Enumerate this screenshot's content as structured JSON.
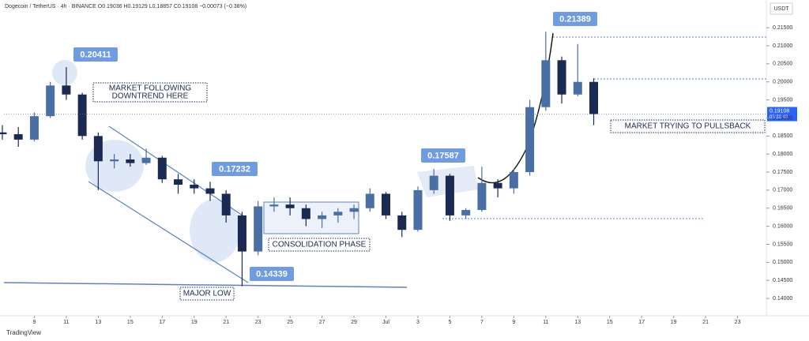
{
  "chart_data": {
    "type": "candlestick",
    "header": "Dogecoin / TetherUS · 4h · BINANCE   O0.19036  H0.19129  L0.18857  C0.19108  −0.00073 (−0.38%)",
    "currency": "USDT",
    "x": [
      7,
      8,
      9,
      10,
      11,
      12,
      13,
      14,
      15,
      16,
      17,
      18,
      19,
      20,
      21,
      22,
      23,
      24,
      25,
      26,
      27,
      28,
      29,
      30,
      31,
      32,
      33,
      34,
      35,
      36,
      37,
      38,
      39,
      40,
      41,
      42,
      43,
      44
    ],
    "open": [
      0.186,
      0.1855,
      0.184,
      0.1905,
      0.199,
      0.1965,
      0.185,
      0.178,
      0.1785,
      0.1775,
      0.179,
      0.173,
      0.1715,
      0.1705,
      0.169,
      0.163,
      0.153,
      0.1655,
      0.166,
      0.165,
      0.162,
      0.163,
      0.164,
      0.165,
      0.169,
      0.163,
      0.159,
      0.17,
      0.174,
      0.163,
      0.1645,
      0.172,
      0.1705,
      0.175,
      0.193,
      0.206,
      0.1965,
      0.2
    ],
    "high": [
      0.188,
      0.1875,
      0.1915,
      0.2,
      0.20411,
      0.197,
      0.186,
      0.18,
      0.18,
      0.1815,
      0.1795,
      0.1745,
      0.173,
      0.17232,
      0.17,
      0.164,
      0.167,
      0.168,
      0.168,
      0.166,
      0.164,
      0.165,
      0.166,
      0.1705,
      0.1695,
      0.164,
      0.171,
      0.17587,
      0.1745,
      0.165,
      0.1765,
      0.173,
      0.176,
      0.195,
      0.21389,
      0.207,
      0.2105,
      0.201
    ],
    "low": [
      0.184,
      0.182,
      0.1835,
      0.19,
      0.195,
      0.184,
      0.17,
      0.176,
      0.1765,
      0.177,
      0.172,
      0.169,
      0.169,
      0.167,
      0.161,
      0.14339,
      0.152,
      0.164,
      0.163,
      0.16,
      0.1595,
      0.161,
      0.162,
      0.164,
      0.162,
      0.157,
      0.1585,
      0.169,
      0.1615,
      0.162,
      0.164,
      0.168,
      0.169,
      0.174,
      0.192,
      0.194,
      0.196,
      0.188
    ],
    "close": [
      0.1855,
      0.184,
      0.1905,
      0.199,
      0.1965,
      0.185,
      0.178,
      0.1785,
      0.1775,
      0.179,
      0.173,
      0.1715,
      0.1705,
      0.169,
      0.163,
      0.153,
      0.1655,
      0.166,
      0.165,
      0.162,
      0.163,
      0.164,
      0.165,
      0.169,
      0.163,
      0.159,
      0.17,
      0.174,
      0.163,
      0.1645,
      0.172,
      0.1705,
      0.175,
      0.193,
      0.206,
      0.1965,
      0.2,
      0.19108
    ],
    "up_color": "#4a6fa5",
    "down_color": "#1b2a52",
    "xlim": [
      7.1,
      54.8
    ],
    "ylim": [
      0.1352,
      0.2205
    ],
    "xticks": [
      9,
      11,
      13,
      15,
      17,
      19,
      21,
      23,
      25,
      27,
      29,
      {
        "value": 31,
        "label": "Jul"
      },
      {
        "value": 33,
        "label": "3"
      },
      {
        "value": 35,
        "label": "5"
      },
      {
        "value": 37,
        "label": "7"
      },
      {
        "value": 39,
        "label": "9"
      },
      {
        "value": 41,
        "label": "11"
      },
      {
        "value": 43,
        "label": "13"
      },
      {
        "value": 45,
        "label": "15"
      },
      {
        "value": 47,
        "label": "17"
      },
      {
        "value": 49,
        "label": "19"
      },
      {
        "value": 51,
        "label": "21"
      },
      {
        "value": 53,
        "label": "23"
      }
    ],
    "yticks": [
      {
        "value": 0.14,
        "label": "0.14000"
      },
      {
        "value": 0.145,
        "label": "0.14500"
      },
      {
        "value": 0.15,
        "label": "0.15000"
      },
      {
        "value": 0.155,
        "label": "0.15500"
      },
      {
        "value": 0.16,
        "label": "0.16000"
      },
      {
        "value": 0.165,
        "label": "0.16500"
      },
      {
        "value": 0.17,
        "label": "0.17000"
      },
      {
        "value": 0.175,
        "label": "0.17500"
      },
      {
        "value": 0.18,
        "label": "0.18000"
      },
      {
        "value": 0.185,
        "label": "0.18500"
      },
      {
        "value": 0.19,
        "label": "0.19000"
      },
      {
        "value": 0.195,
        "label": "0.19500"
      },
      {
        "value": 0.2,
        "label": "0.20000"
      },
      {
        "value": 0.205,
        "label": "0.20500"
      },
      {
        "value": 0.21,
        "label": "0.21000"
      },
      {
        "value": 0.215,
        "label": "0.21500"
      }
    ],
    "last_price": {
      "value": 0.19108,
      "label": "0.19108",
      "countdown": "03:39:49"
    },
    "price_callouts": [
      "0.20411",
      "0.17232",
      "0.14339",
      "0.17587",
      "0.21389"
    ],
    "notes": [
      [
        "MARKET FOLLOWING",
        "DOWNTREND HERE"
      ],
      [
        "CONSOLIDATION PHASE"
      ],
      [
        "MAJOR LOW"
      ],
      [
        "MARKET TRYING TO PULLSBACK"
      ]
    ],
    "footer": "TradingView"
  }
}
